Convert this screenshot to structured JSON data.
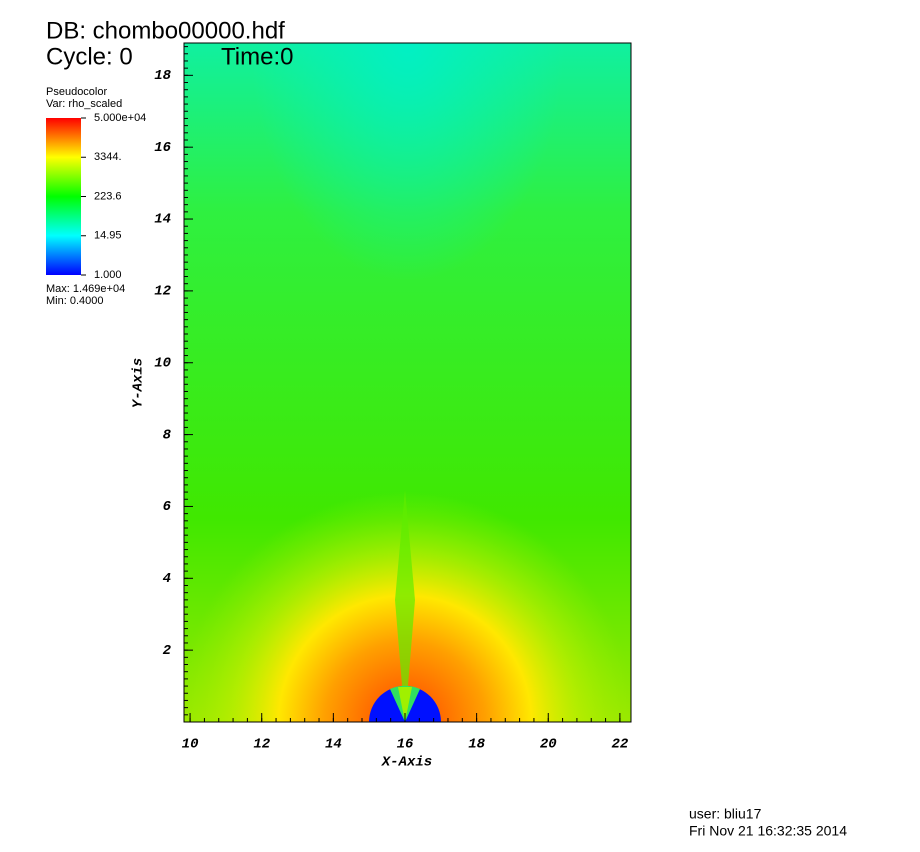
{
  "chart_data": {
    "type": "pseudocolor",
    "db_label": "DB: chombo00000.hdf",
    "cycle_label": "Cycle: 0",
    "time_label": "Time:0",
    "plot_label": "Pseudocolor",
    "var_label": "Var: rho_scaled",
    "max_label": "Max: 1.469e+04",
    "min_label": "Min: 0.4000",
    "x_label": "X-Axis",
    "y_label": "Y-Axis",
    "xlim": [
      9.83,
      22.31
    ],
    "xticks": [
      10,
      12,
      14,
      16,
      18,
      20,
      22
    ],
    "ylim": [
      0,
      18.9
    ],
    "yticks": [
      2,
      4,
      6,
      8,
      10,
      12,
      14,
      16,
      18
    ],
    "colorbar": {
      "log": true,
      "clim": [
        1,
        50000
      ],
      "ticks": [
        {
          "value": 50000,
          "label": "5.000e+04"
        },
        {
          "value": 3344,
          "label": "3344."
        },
        {
          "value": 223.6,
          "label": "223.6"
        },
        {
          "value": 14.95,
          "label": "14.95"
        },
        {
          "value": 1,
          "label": "1.000"
        }
      ]
    },
    "user_label": "user: bliu17",
    "date_label": "Fri Nov 21 16:32:35 2014"
  }
}
